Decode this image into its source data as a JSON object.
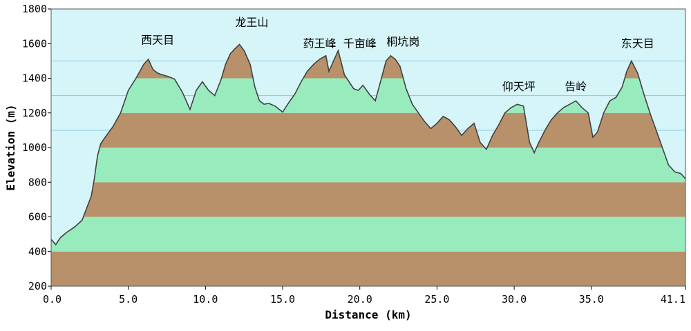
{
  "chart_data": {
    "type": "area",
    "title": "",
    "xlabel": "Distance (km)",
    "ylabel": "Elevation (m)",
    "xlim": [
      0,
      41.1
    ],
    "ylim": [
      200,
      1800
    ],
    "x_ticks": [
      "0.0",
      "5.0",
      "10.0",
      "15.0",
      "20.0",
      "25.0",
      "30.0",
      "35.0",
      "41.1"
    ],
    "y_ticks": [
      "200",
      "400",
      "600",
      "800",
      "1000",
      "1200",
      "1400",
      "1600",
      "1800"
    ],
    "colors": {
      "sky": "#d6f5f8",
      "band_brown": "#b8916a",
      "band_green": "#98ebbd",
      "profile_line": "#404040",
      "sky_lines": "#86c8e6"
    },
    "series": [
      {
        "x": [
          0,
          0.3,
          0.6,
          1.0,
          1.5,
          2.0,
          2.3,
          2.6,
          2.8,
          3.0,
          3.2,
          3.5,
          4.0,
          4.5,
          5.0,
          5.5,
          6.0,
          6.3,
          6.6,
          6.9,
          7.2,
          7.6,
          8.0,
          8.5,
          9.0,
          9.4,
          9.8,
          10.2,
          10.6,
          11.0,
          11.3,
          11.6,
          11.9,
          12.2,
          12.5,
          12.9,
          13.2,
          13.5,
          13.8,
          14.1,
          14.5,
          15.0,
          15.4,
          15.8,
          16.2,
          16.6,
          17.0,
          17.4,
          17.8,
          18.0,
          18.3,
          18.6,
          19.0,
          19.3,
          19.6,
          19.9,
          20.2,
          20.6,
          21.0,
          21.4,
          21.7,
          22.0,
          22.3,
          22.6,
          23.0,
          23.4,
          23.8,
          24.2,
          24.6,
          25.0,
          25.4,
          25.8,
          26.2,
          26.6,
          27.0,
          27.4,
          27.8,
          28.2,
          28.6,
          29.0,
          29.4,
          29.8,
          30.2,
          30.6,
          31.0,
          31.3,
          31.6,
          32.0,
          32.4,
          32.8,
          33.2,
          33.6,
          34.0,
          34.4,
          34.8,
          35.1,
          35.4,
          35.8,
          36.2,
          36.6,
          37.0,
          37.3,
          37.6,
          38.0,
          38.4,
          38.8,
          39.2,
          39.6,
          40.0,
          40.4,
          40.8,
          41.1
        ],
        "y": [
          470,
          440,
          480,
          510,
          540,
          580,
          650,
          720,
          820,
          950,
          1020,
          1060,
          1120,
          1200,
          1330,
          1400,
          1480,
          1510,
          1450,
          1430,
          1420,
          1410,
          1395,
          1320,
          1220,
          1330,
          1380,
          1330,
          1300,
          1390,
          1480,
          1540,
          1570,
          1595,
          1560,
          1480,
          1350,
          1270,
          1250,
          1255,
          1240,
          1205,
          1260,
          1310,
          1380,
          1440,
          1480,
          1510,
          1530,
          1440,
          1500,
          1560,
          1420,
          1380,
          1340,
          1330,
          1360,
          1310,
          1270,
          1400,
          1500,
          1530,
          1510,
          1470,
          1340,
          1250,
          1200,
          1150,
          1110,
          1140,
          1180,
          1160,
          1120,
          1070,
          1110,
          1140,
          1030,
          990,
          1070,
          1130,
          1200,
          1230,
          1250,
          1240,
          1030,
          970,
          1030,
          1100,
          1160,
          1200,
          1230,
          1250,
          1270,
          1230,
          1200,
          1060,
          1090,
          1200,
          1270,
          1290,
          1350,
          1440,
          1500,
          1430,
          1310,
          1200,
          1100,
          1000,
          900,
          860,
          850,
          820
        ]
      }
    ],
    "annotations": [
      {
        "text": "西天目",
        "x": 6.9,
        "y": 1600
      },
      {
        "text": "龙王山",
        "x": 13.0,
        "y": 1700
      },
      {
        "text": "药王峰",
        "x": 17.4,
        "y": 1580
      },
      {
        "text": "千亩峰",
        "x": 20.0,
        "y": 1580
      },
      {
        "text": "桐坑岗",
        "x": 22.8,
        "y": 1590
      },
      {
        "text": "仰天坪",
        "x": 30.3,
        "y": 1330
      },
      {
        "text": "告岭",
        "x": 34.0,
        "y": 1330
      },
      {
        "text": "东天目",
        "x": 38.0,
        "y": 1580
      }
    ]
  }
}
